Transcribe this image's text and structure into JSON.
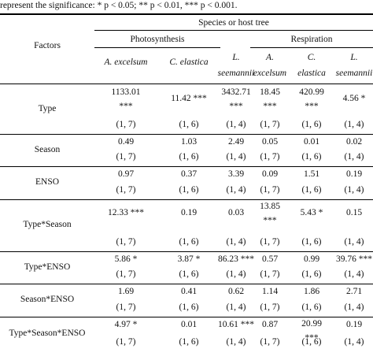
{
  "caption": "represent the significance: * p < 0.05; ** p < 0.01, *** p < 0.001.",
  "header": {
    "factors": "Factors",
    "group": "Species or host tree",
    "photosynthesis": "Photosynthesis",
    "respiration": "Respiration",
    "columns": [
      {
        "line1": "A. excelsum",
        "line2": ""
      },
      {
        "line1": "C. elastica",
        "line2": ""
      },
      {
        "line1": "L.",
        "line2": "seemannii"
      },
      {
        "line1": "A.",
        "line2": "excelsum"
      },
      {
        "line1": "C.",
        "line2": "elastica"
      },
      {
        "line1": "L.",
        "line2": "seemannii"
      }
    ]
  },
  "rows": [
    {
      "factor": "Type",
      "values": [
        {
          "v1": "1133.01",
          "v2": "***",
          "df": "(1, 7)"
        },
        {
          "v1": "11.42 ***",
          "v2": "",
          "df": "(1, 6)"
        },
        {
          "v1": "3432.71",
          "v2": "***",
          "df": "(1, 4)"
        },
        {
          "v1": "18.45",
          "v2": "***",
          "df": "(1, 7)"
        },
        {
          "v1": "420.99",
          "v2": "***",
          "df": "(1, 6)"
        },
        {
          "v1": "4.56 *",
          "v2": "",
          "df": "(1, 4)"
        }
      ]
    },
    {
      "factor": "Season",
      "values": [
        {
          "v1": "0.49",
          "v2": "",
          "df": "(1, 7)"
        },
        {
          "v1": "1.03",
          "v2": "",
          "df": "(1, 6)"
        },
        {
          "v1": "2.49",
          "v2": "",
          "df": "(1, 4)"
        },
        {
          "v1": "0.05",
          "v2": "",
          "df": "(1, 7)"
        },
        {
          "v1": "0.01",
          "v2": "",
          "df": "(1, 6)"
        },
        {
          "v1": "0.02",
          "v2": "",
          "df": "(1, 4)"
        }
      ]
    },
    {
      "factor": "ENSO",
      "values": [
        {
          "v1": "0.97",
          "v2": "",
          "df": "(1, 7)"
        },
        {
          "v1": "0.37",
          "v2": "",
          "df": "(1, 6)"
        },
        {
          "v1": "3.39",
          "v2": "",
          "df": "(1, 4)"
        },
        {
          "v1": "0.09",
          "v2": "",
          "df": "(1, 7)"
        },
        {
          "v1": "1.51",
          "v2": "",
          "df": "(1, 6)"
        },
        {
          "v1": "0.19",
          "v2": "",
          "df": "(1, 4)"
        }
      ]
    },
    {
      "factor": "Type*Season",
      "values": [
        {
          "v1": "12.33 ***",
          "v2": "",
          "df": "(1, 7)"
        },
        {
          "v1": "0.19",
          "v2": "",
          "df": "(1, 6)"
        },
        {
          "v1": "0.03",
          "v2": "",
          "df": "(1, 4)"
        },
        {
          "v1": "13.85",
          "v2": "***",
          "df": "(1, 7)"
        },
        {
          "v1": "5.43 *",
          "v2": "",
          "df": "(1, 6)"
        },
        {
          "v1": "0.15",
          "v2": "",
          "df": "(1, 4)"
        }
      ]
    },
    {
      "factor": "Type*ENSO",
      "values": [
        {
          "v1": "5.86 *",
          "v2": "",
          "df": "(1, 7)"
        },
        {
          "v1": "3.87 *",
          "v2": "",
          "df": "(1, 6)"
        },
        {
          "v1": "86.23 ***",
          "v2": "",
          "df": "(1, 4)"
        },
        {
          "v1": "0.57",
          "v2": "",
          "df": "(1, 7)"
        },
        {
          "v1": "0.99",
          "v2": "",
          "df": "(1, 6)"
        },
        {
          "v1": "39.76 ***",
          "v2": "",
          "df": "(1, 4)"
        }
      ]
    },
    {
      "factor": "Season*ENSO",
      "values": [
        {
          "v1": "1.69",
          "v2": "",
          "df": "(1, 7)"
        },
        {
          "v1": "0.41",
          "v2": "",
          "df": "(1, 6)"
        },
        {
          "v1": "0.62",
          "v2": "",
          "df": "(1, 4)"
        },
        {
          "v1": "1.14",
          "v2": "",
          "df": "(1, 7)"
        },
        {
          "v1": "1.86",
          "v2": "",
          "df": "(1, 6)"
        },
        {
          "v1": "2.71",
          "v2": "",
          "df": "(1, 4)"
        }
      ]
    },
    {
      "factor": "Type*Season*ENSO",
      "values": [
        {
          "v1": "4.97 *",
          "v2": "",
          "df": "(1, 7)"
        },
        {
          "v1": "0.01",
          "v2": "",
          "df": "(1, 6)"
        },
        {
          "v1": "10.61 ***",
          "v2": "",
          "df": "(1, 4)"
        },
        {
          "v1": "0.87",
          "v2": "",
          "df": "(1, 7)"
        },
        {
          "v1": "20.99",
          "v2": "***",
          "df": "(1, 6)"
        },
        {
          "v1": "0.19",
          "v2": "",
          "df": "(1, 4)"
        }
      ]
    }
  ]
}
